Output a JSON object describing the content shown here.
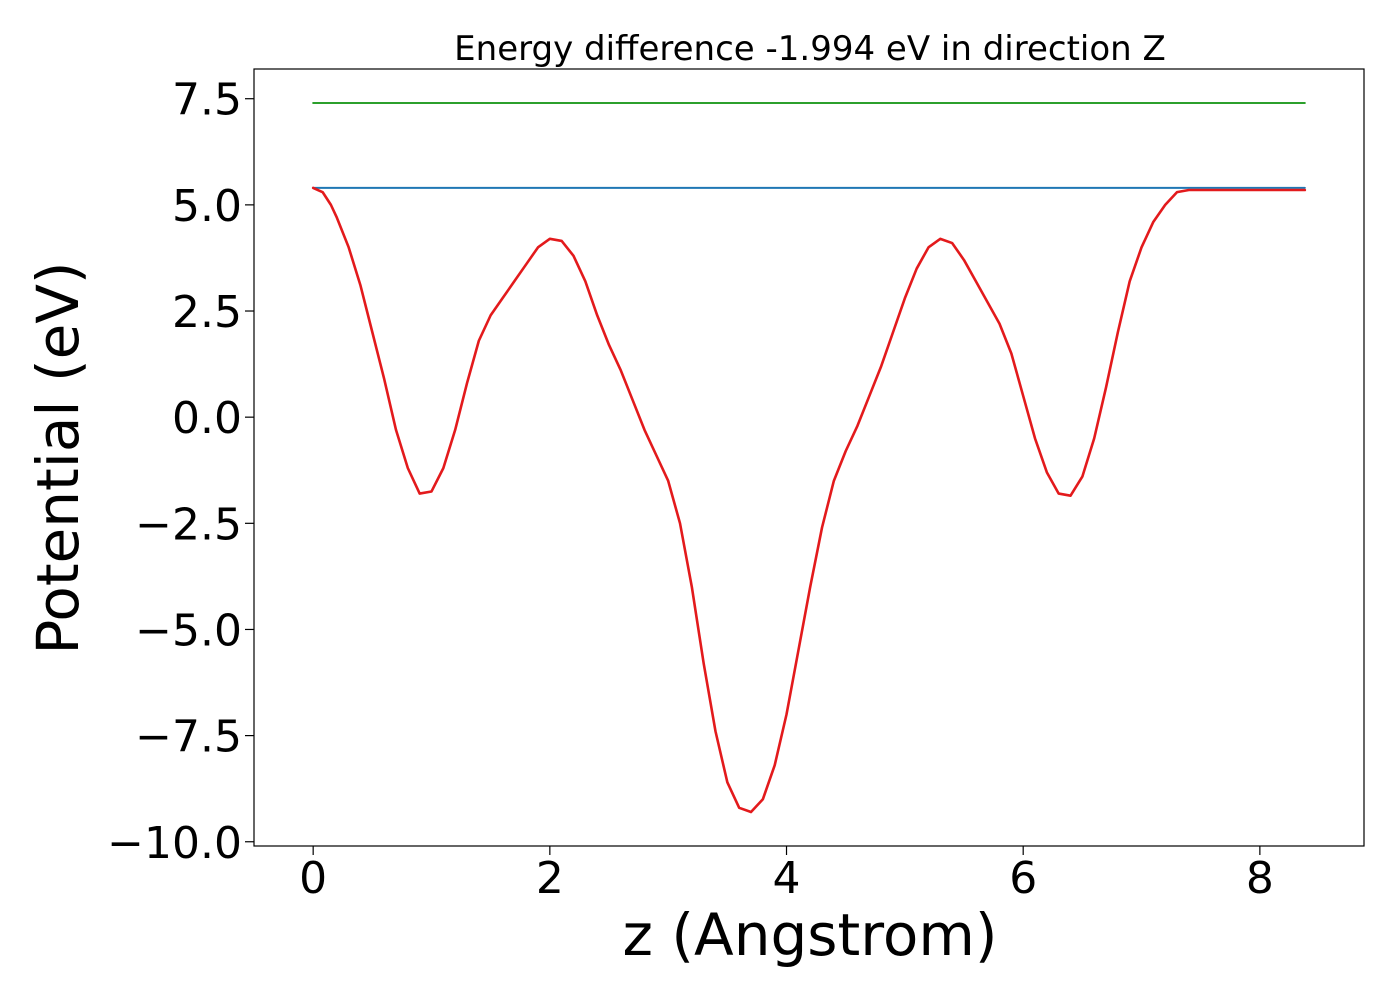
{
  "chart_data": {
    "type": "line",
    "title": "Energy difference -1.994 eV in direction Z",
    "xlabel": "z (Angstrom)",
    "ylabel": "Potential (eV)",
    "xlim": [
      -0.5,
      8.88
    ],
    "ylim": [
      -10.1,
      8.2
    ],
    "xticks": [
      0,
      2,
      4,
      6,
      8
    ],
    "xtick_labels": [
      "0",
      "2",
      "4",
      "6",
      "8"
    ],
    "yticks": [
      7.5,
      5.0,
      2.5,
      0.0,
      -2.5,
      -5.0,
      -7.5,
      -10.0
    ],
    "ytick_labels": [
      "7.5",
      "5.0",
      "2.5",
      "0.0",
      "−2.5",
      "−5.0",
      "−7.5",
      "−10.0"
    ],
    "grid": false,
    "series": [
      {
        "color": "#2ca02c",
        "x": [
          0,
          8.38
        ],
        "values": [
          7.4,
          7.4
        ]
      },
      {
        "color": "#1f77b4",
        "x": [
          0,
          8.38
        ],
        "values": [
          5.4,
          5.4
        ]
      },
      {
        "color": "#e31a1c",
        "x": [
          0,
          0.08,
          0.15,
          0.2,
          0.3,
          0.4,
          0.5,
          0.6,
          0.7,
          0.8,
          0.9,
          1.0,
          1.1,
          1.2,
          1.3,
          1.4,
          1.5,
          1.6,
          1.7,
          1.8,
          1.9,
          2.0,
          2.1,
          2.2,
          2.3,
          2.4,
          2.5,
          2.6,
          2.7,
          2.8,
          2.9,
          3.0,
          3.1,
          3.2,
          3.3,
          3.4,
          3.5,
          3.6,
          3.7,
          3.8,
          3.9,
          4.0,
          4.1,
          4.2,
          4.3,
          4.4,
          4.5,
          4.6,
          4.7,
          4.8,
          4.9,
          5.0,
          5.1,
          5.2,
          5.3,
          5.4,
          5.5,
          5.6,
          5.7,
          5.8,
          5.9,
          6.0,
          6.1,
          6.2,
          6.3,
          6.4,
          6.5,
          6.6,
          6.7,
          6.8,
          6.9,
          7.0,
          7.1,
          7.2,
          7.3,
          7.4,
          7.5,
          7.6,
          7.7,
          7.8,
          7.9,
          8.0,
          8.1,
          8.2,
          8.3,
          8.38
        ],
        "values": [
          5.4,
          5.3,
          5.0,
          4.7,
          4.0,
          3.1,
          2.0,
          0.9,
          -0.3,
          -1.2,
          -1.8,
          -1.75,
          -1.2,
          -0.3,
          0.8,
          1.8,
          2.4,
          2.8,
          3.2,
          3.6,
          4.0,
          4.2,
          4.15,
          3.8,
          3.2,
          2.4,
          1.7,
          1.1,
          0.4,
          -0.3,
          -0.9,
          -1.5,
          -2.5,
          -4.0,
          -5.8,
          -7.4,
          -8.6,
          -9.2,
          -9.3,
          -9.0,
          -8.2,
          -7.0,
          -5.5,
          -4.0,
          -2.6,
          -1.5,
          -0.8,
          -0.2,
          0.5,
          1.2,
          2.0,
          2.8,
          3.5,
          4.0,
          4.2,
          4.1,
          3.7,
          3.2,
          2.7,
          2.2,
          1.5,
          0.5,
          -0.5,
          -1.3,
          -1.8,
          -1.85,
          -1.4,
          -0.5,
          0.7,
          2.0,
          3.2,
          4.0,
          4.6,
          5.0,
          5.3,
          5.35,
          5.35,
          5.35,
          5.35,
          5.35,
          5.35,
          5.35,
          5.35,
          5.35,
          5.35,
          5.35
        ]
      }
    ]
  }
}
